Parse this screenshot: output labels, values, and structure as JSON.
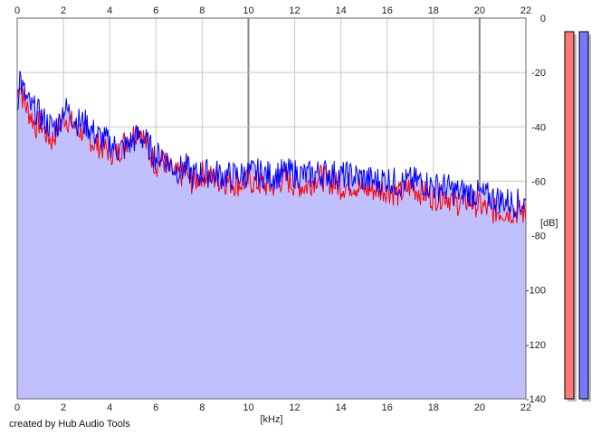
{
  "credit": "created by Hub Audio Tools",
  "chart_data": {
    "type": "area",
    "xlabel": "[kHz]",
    "ylabel": "[dB]",
    "xlim": [
      0,
      22
    ],
    "ylim": [
      -140,
      0
    ],
    "x_ticks": [
      0,
      2,
      4,
      6,
      8,
      10,
      12,
      14,
      16,
      18,
      20,
      22
    ],
    "y_ticks": [
      0,
      -20,
      -40,
      -60,
      -80,
      -100,
      -120,
      -140
    ],
    "grid": true,
    "x_axis_position": "top-and-bottom",
    "y_axis_position": "right",
    "fill_color": "#c0c0ff",
    "series": [
      {
        "color": "#ff0000",
        "x": [
          0,
          0.1,
          0.2,
          0.4,
          0.6,
          0.8,
          1.0,
          1.2,
          1.5,
          1.8,
          2.0,
          2.3,
          2.6,
          3.0,
          3.3,
          3.6,
          4.0,
          4.3,
          4.6,
          5.0,
          5.3,
          5.6,
          6.0,
          6.3,
          6.6,
          7.0,
          7.3,
          7.6,
          8.0,
          8.5,
          9.0,
          9.5,
          10.0,
          10.5,
          11.0,
          11.5,
          12.0,
          12.5,
          13.0,
          13.5,
          14.0,
          14.5,
          15.0,
          15.5,
          16.0,
          16.5,
          17.0,
          17.5,
          18.0,
          18.5,
          19.0,
          19.5,
          20.0,
          20.5,
          21.0,
          21.5,
          22.0
        ],
        "y": [
          -30,
          -22,
          -28,
          -33,
          -36,
          -40,
          -38,
          -42,
          -45,
          -40,
          -36,
          -38,
          -41,
          -42,
          -46,
          -47,
          -49,
          -50,
          -46,
          -43,
          -40,
          -47,
          -54,
          -52,
          -56,
          -58,
          -57,
          -61,
          -57,
          -59,
          -60,
          -61,
          -60,
          -61,
          -62,
          -59,
          -61,
          -62,
          -58,
          -60,
          -62,
          -61,
          -63,
          -63,
          -63,
          -65,
          -62,
          -64,
          -66,
          -65,
          -68,
          -67,
          -69,
          -71,
          -71,
          -71,
          -72
        ]
      },
      {
        "color": "#0000ff",
        "x": [
          0,
          0.1,
          0.2,
          0.4,
          0.6,
          0.8,
          1.0,
          1.2,
          1.5,
          1.8,
          2.0,
          2.3,
          2.6,
          3.0,
          3.3,
          3.6,
          4.0,
          4.3,
          4.6,
          5.0,
          5.3,
          5.6,
          6.0,
          6.3,
          6.6,
          7.0,
          7.3,
          7.6,
          8.0,
          8.5,
          9.0,
          9.5,
          10.0,
          10.5,
          11.0,
          11.5,
          12.0,
          12.5,
          13.0,
          13.5,
          14.0,
          14.5,
          15.0,
          15.5,
          16.0,
          16.5,
          17.0,
          17.5,
          18.0,
          18.5,
          19.0,
          19.5,
          20.0,
          20.5,
          21.0,
          21.5,
          22.0
        ],
        "y": [
          -34,
          -20,
          -25,
          -30,
          -33,
          -34,
          -36,
          -38,
          -40,
          -39,
          -33,
          -35,
          -38,
          -39,
          -42,
          -44,
          -46,
          -48,
          -48,
          -45,
          -43,
          -46,
          -51,
          -50,
          -54,
          -56,
          -55,
          -58,
          -57,
          -57,
          -58,
          -58,
          -57,
          -57,
          -58,
          -57,
          -57,
          -58,
          -57,
          -57,
          -58,
          -58,
          -59,
          -60,
          -59,
          -61,
          -60,
          -60,
          -62,
          -62,
          -64,
          -64,
          -65,
          -66,
          -67,
          -68,
          -68
        ]
      }
    ],
    "level_meters": [
      {
        "color": "#ff7777",
        "level_db": -5
      },
      {
        "color": "#7777ff",
        "level_db": -5
      }
    ]
  }
}
